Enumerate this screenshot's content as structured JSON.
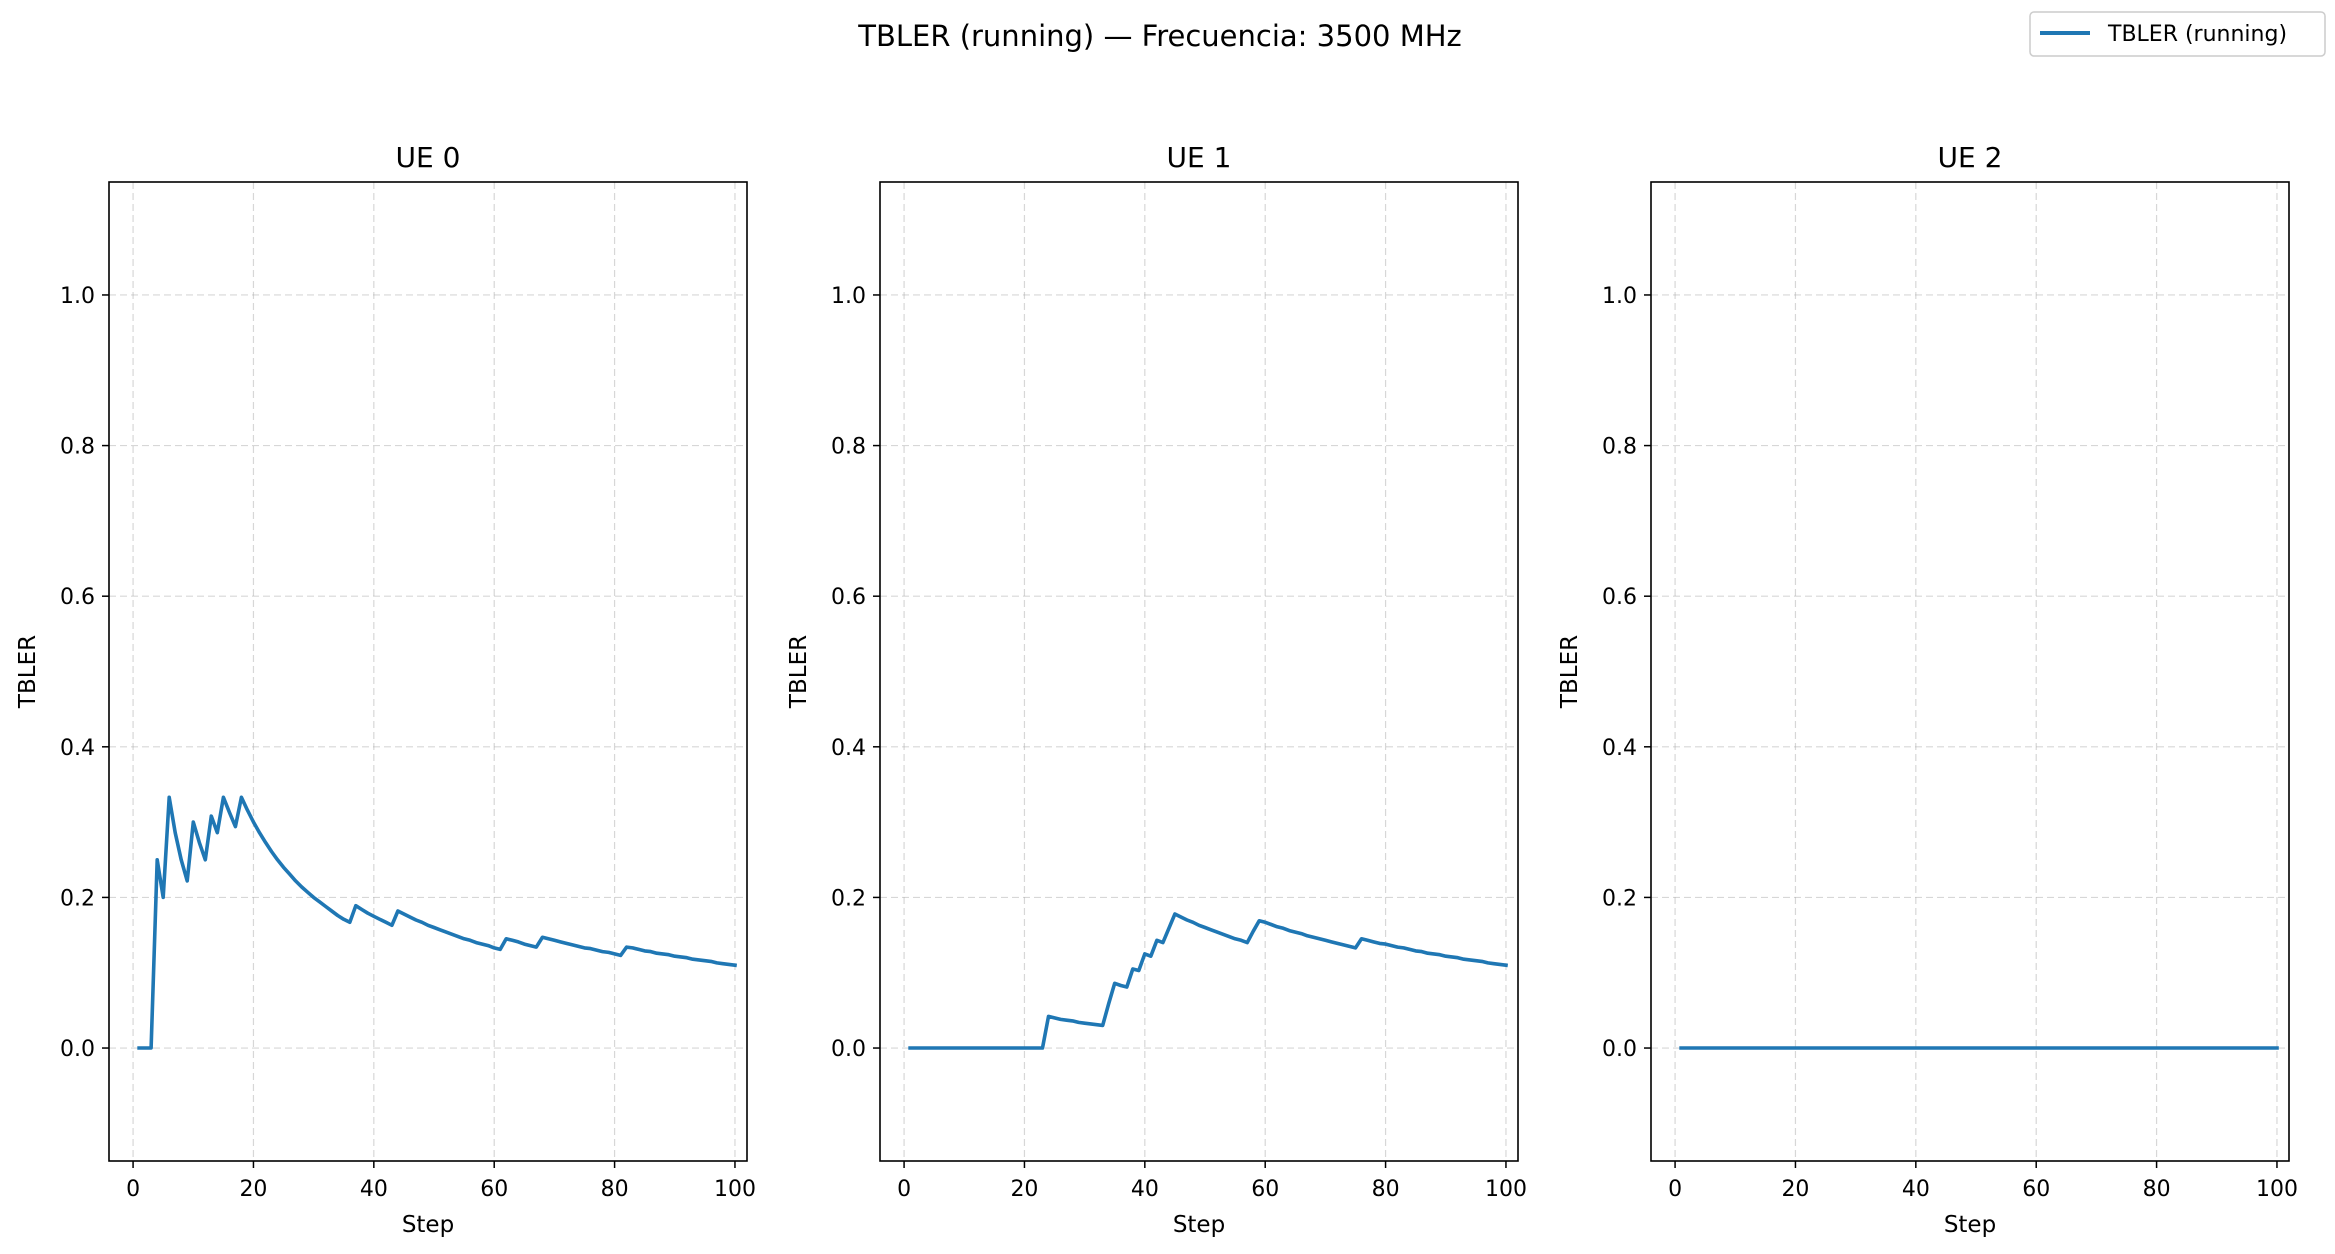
{
  "figure": {
    "suptitle": "TBLER (running) — Frecuencia: 3500 MHz",
    "legend": {
      "placement": "top-right",
      "label": "TBLER (running)"
    },
    "line_color": "#1f77b4",
    "grid_color": "#b0b0b0"
  },
  "chart_data": [
    {
      "type": "line",
      "title": "UE 0",
      "xlabel": "Step",
      "ylabel": "TBLER",
      "xlim": [
        -4,
        102
      ],
      "ylim": [
        -0.15,
        1.15
      ],
      "xticks": [
        "0",
        "20",
        "40",
        "60",
        "80",
        "100"
      ],
      "yticks": [
        "0.0",
        "0.2",
        "0.4",
        "0.6",
        "0.8",
        "1.0"
      ],
      "grid": true,
      "series": [
        {
          "name": "TBLER (running)",
          "x": [
            1,
            2,
            3,
            4,
            5,
            6,
            7,
            8,
            9,
            10,
            11,
            12,
            13,
            14,
            15,
            16,
            17,
            18,
            19,
            20,
            21,
            22,
            23,
            24,
            25,
            26,
            27,
            28,
            29,
            30,
            31,
            32,
            33,
            34,
            35,
            36,
            37,
            38,
            39,
            40,
            41,
            42,
            43,
            44,
            45,
            46,
            47,
            48,
            49,
            50,
            51,
            52,
            53,
            54,
            55,
            56,
            57,
            58,
            59,
            60,
            61,
            62,
            63,
            64,
            65,
            66,
            67,
            68,
            69,
            70,
            71,
            72,
            73,
            74,
            75,
            76,
            77,
            78,
            79,
            80,
            81,
            82,
            83,
            84,
            85,
            86,
            87,
            88,
            89,
            90,
            91,
            92,
            93,
            94,
            95,
            96,
            97,
            98,
            99,
            100
          ],
          "values": [
            0,
            0,
            0,
            0.25,
            0.2,
            0.333,
            0.286,
            0.25,
            0.222,
            0.3,
            0.273,
            0.25,
            0.308,
            0.286,
            0.333,
            0.313,
            0.294,
            0.333,
            0.316,
            0.3,
            0.286,
            0.273,
            0.261,
            0.25,
            0.24,
            0.231,
            0.222,
            0.214,
            0.207,
            0.2,
            0.194,
            0.188,
            0.182,
            0.176,
            0.171,
            0.167,
            0.189,
            0.184,
            0.179,
            0.175,
            0.171,
            0.167,
            0.163,
            0.182,
            0.178,
            0.174,
            0.17,
            0.167,
            0.163,
            0.16,
            0.157,
            0.154,
            0.151,
            0.148,
            0.145,
            0.143,
            0.14,
            0.138,
            0.136,
            0.133,
            0.131,
            0.145,
            0.143,
            0.141,
            0.138,
            0.136,
            0.134,
            0.147,
            0.145,
            0.143,
            0.141,
            0.139,
            0.137,
            0.135,
            0.133,
            0.132,
            0.13,
            0.128,
            0.127,
            0.125,
            0.123,
            0.134,
            0.133,
            0.131,
            0.129,
            0.128,
            0.126,
            0.125,
            0.124,
            0.122,
            0.121,
            0.12,
            0.118,
            0.117,
            0.116,
            0.115,
            0.113,
            0.112,
            0.111,
            0.11
          ]
        }
      ]
    },
    {
      "type": "line",
      "title": "UE 1",
      "xlabel": "Step",
      "ylabel": "TBLER",
      "xlim": [
        -4,
        102
      ],
      "ylim": [
        -0.15,
        1.15
      ],
      "xticks": [
        "0",
        "20",
        "40",
        "60",
        "80",
        "100"
      ],
      "yticks": [
        "0.0",
        "0.2",
        "0.4",
        "0.6",
        "0.8",
        "1.0"
      ],
      "grid": true,
      "series": [
        {
          "name": "TBLER (running)",
          "x": [
            1,
            2,
            3,
            4,
            5,
            6,
            7,
            8,
            9,
            10,
            11,
            12,
            13,
            14,
            15,
            16,
            17,
            18,
            19,
            20,
            21,
            22,
            23,
            24,
            25,
            26,
            27,
            28,
            29,
            30,
            31,
            32,
            33,
            34,
            35,
            36,
            37,
            38,
            39,
            40,
            41,
            42,
            43,
            44,
            45,
            46,
            47,
            48,
            49,
            50,
            51,
            52,
            53,
            54,
            55,
            56,
            57,
            58,
            59,
            60,
            61,
            62,
            63,
            64,
            65,
            66,
            67,
            68,
            69,
            70,
            71,
            72,
            73,
            74,
            75,
            76,
            77,
            78,
            79,
            80,
            81,
            82,
            83,
            84,
            85,
            86,
            87,
            88,
            89,
            90,
            91,
            92,
            93,
            94,
            95,
            96,
            97,
            98,
            99,
            100
          ],
          "values": [
            0,
            0,
            0,
            0,
            0,
            0,
            0,
            0,
            0,
            0,
            0,
            0,
            0,
            0,
            0,
            0,
            0,
            0,
            0,
            0,
            0,
            0,
            0,
            0.042,
            0.04,
            0.038,
            0.037,
            0.036,
            0.034,
            0.033,
            0.032,
            0.031,
            0.03,
            0.059,
            0.086,
            0.083,
            0.081,
            0.105,
            0.103,
            0.125,
            0.122,
            0.143,
            0.14,
            0.159,
            0.178,
            0.174,
            0.17,
            0.167,
            0.163,
            0.16,
            0.157,
            0.154,
            0.151,
            0.148,
            0.145,
            0.143,
            0.14,
            0.155,
            0.169,
            0.167,
            0.164,
            0.161,
            0.159,
            0.156,
            0.154,
            0.152,
            0.149,
            0.147,
            0.145,
            0.143,
            0.141,
            0.139,
            0.137,
            0.135,
            0.133,
            0.145,
            0.143,
            0.141,
            0.139,
            0.138,
            0.136,
            0.134,
            0.133,
            0.131,
            0.129,
            0.128,
            0.126,
            0.125,
            0.124,
            0.122,
            0.121,
            0.12,
            0.118,
            0.117,
            0.116,
            0.115,
            0.113,
            0.112,
            0.111,
            0.11
          ]
        }
      ]
    },
    {
      "type": "line",
      "title": "UE 2",
      "xlabel": "Step",
      "ylabel": "TBLER",
      "xlim": [
        -4,
        102
      ],
      "ylim": [
        -0.15,
        1.15
      ],
      "xticks": [
        "0",
        "20",
        "40",
        "60",
        "80",
        "100"
      ],
      "yticks": [
        "0.0",
        "0.2",
        "0.4",
        "0.6",
        "0.8",
        "1.0"
      ],
      "grid": true,
      "series": [
        {
          "name": "TBLER (running)",
          "x": [
            1,
            100
          ],
          "values": [
            0,
            0
          ]
        }
      ]
    }
  ]
}
